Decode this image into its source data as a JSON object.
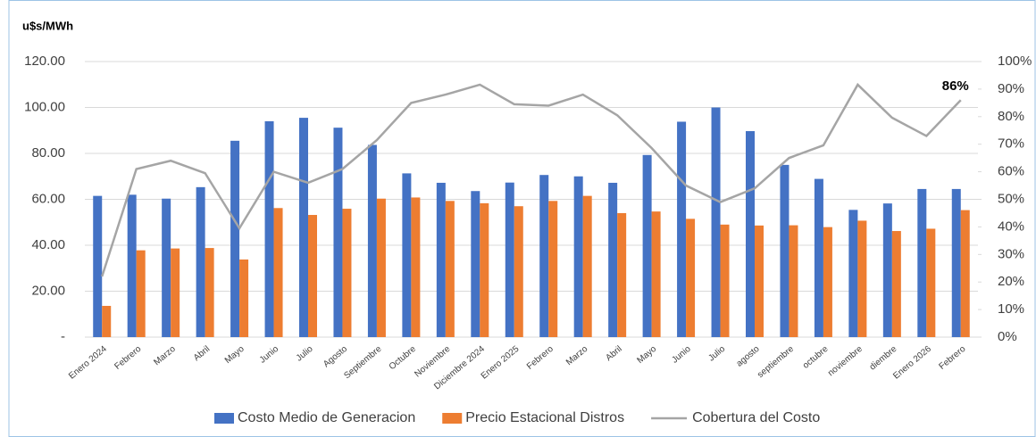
{
  "chart_data": {
    "type": "bar",
    "y_axis_label": "u$s/MWh",
    "categories": [
      "Enero 2024",
      "Febrero",
      "Marzo",
      "Abril",
      "Mayo",
      "Junio",
      "Julio",
      "Agosto",
      "Septiembre",
      "Octubre",
      "Noviembre",
      "Diciembre 2024",
      "Enero 2025",
      "Febrero",
      "Marzo",
      "Abril",
      "Mayo",
      "Junio",
      "Julio",
      "agosto",
      "septiembre",
      "octubre",
      "noviembre",
      "diembre",
      "Enero 2026",
      "Febrero"
    ],
    "series": [
      {
        "name": "Costo Medio de Generacion",
        "color": "#4472c4",
        "values": [
          61.5,
          62,
          60.3,
          65.3,
          85.5,
          94,
          95.5,
          91.2,
          83.7,
          71.3,
          67.2,
          63.6,
          67.3,
          70.6,
          70,
          67.2,
          79.3,
          93.8,
          100,
          89.7,
          75,
          68.9,
          55.4,
          58.2,
          64.5,
          64.5
        ]
      },
      {
        "name": "Precio Estacional Distros",
        "color": "#ed7d31",
        "values": [
          13.6,
          37.8,
          38.6,
          38.8,
          33.8,
          56.2,
          53.2,
          55.9,
          60.3,
          60.8,
          59.3,
          58.3,
          57,
          59.3,
          61.5,
          54,
          54.7,
          51.5,
          49,
          48.6,
          48.7,
          47.9,
          50.7,
          46.2,
          47.2,
          55.3
        ]
      },
      {
        "name": "Cobertura del Costo",
        "color": "#a5a5a5",
        "type": "line",
        "axis": "y2",
        "values": [
          22,
          61,
          64,
          59.5,
          39.5,
          60,
          56,
          61,
          71.5,
          85,
          88,
          91.6,
          84.5,
          84,
          88,
          80.5,
          68.6,
          55,
          49,
          54,
          65,
          69.6,
          91.6,
          79.6,
          73,
          86
        ],
        "value_labels": [
          null,
          null,
          null,
          null,
          null,
          null,
          null,
          null,
          null,
          null,
          null,
          null,
          null,
          null,
          null,
          null,
          null,
          null,
          null,
          null,
          null,
          null,
          null,
          null,
          null,
          "86%"
        ]
      }
    ],
    "ylim": [
      0,
      120
    ],
    "yticks": [
      {
        "value": 0,
        "label": "-"
      },
      {
        "value": 20,
        "label": "20.00"
      },
      {
        "value": 40,
        "label": "40.00"
      },
      {
        "value": 60,
        "label": "60.00"
      },
      {
        "value": 80,
        "label": "80.00"
      },
      {
        "value": 100,
        "label": "100.00"
      },
      {
        "value": 120,
        "label": "120.00"
      }
    ],
    "y2lim": [
      0,
      100
    ],
    "y2ticks": [
      {
        "value": 0,
        "label": "0%"
      },
      {
        "value": 10,
        "label": "10%"
      },
      {
        "value": 20,
        "label": "20%"
      },
      {
        "value": 30,
        "label": "30%"
      },
      {
        "value": 40,
        "label": "40%"
      },
      {
        "value": 50,
        "label": "50%"
      },
      {
        "value": 60,
        "label": "60%"
      },
      {
        "value": 70,
        "label": "70%"
      },
      {
        "value": 80,
        "label": "80%"
      },
      {
        "value": 90,
        "label": "90%"
      },
      {
        "value": 100,
        "label": "100%"
      }
    ],
    "grid": true,
    "legend": "bottom"
  }
}
